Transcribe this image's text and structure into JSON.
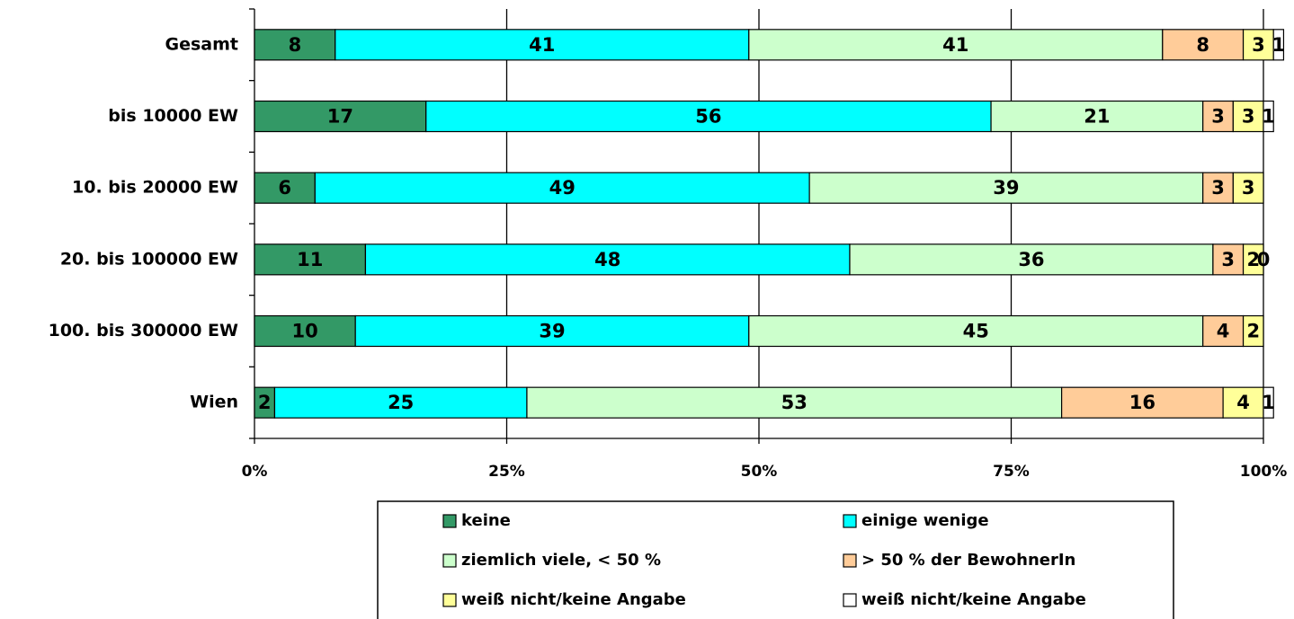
{
  "chart_data": {
    "type": "stacked_barh",
    "categories": [
      "Gesamt",
      "bis 10000 EW",
      "10. bis 20000 EW",
      "20. bis 100000 EW",
      "100. bis 300000 EW",
      "Wien"
    ],
    "series": [
      {
        "name": "keine",
        "color": "#339966",
        "values": [
          8,
          17,
          6,
          11,
          10,
          2
        ]
      },
      {
        "name": "einige wenige",
        "color": "#00ffff",
        "values": [
          41,
          56,
          49,
          48,
          39,
          25
        ]
      },
      {
        "name": "ziemlich viele, < 50 %",
        "color": "#ccffcc",
        "values": [
          41,
          21,
          39,
          36,
          45,
          53
        ]
      },
      {
        "name": "> 50 % der BewohnerIn",
        "color": "#ffcc99",
        "values": [
          8,
          3,
          3,
          3,
          4,
          16
        ]
      },
      {
        "name": "weiß nicht/keine Angabe",
        "color": "#ffff99",
        "values": [
          3,
          3,
          3,
          2,
          2,
          4
        ]
      },
      {
        "name": "weiß nicht/keine Angabe",
        "color": "#ffffff",
        "values": [
          1,
          1,
          null,
          0,
          null,
          1
        ]
      }
    ],
    "xlim": [
      0,
      100
    ],
    "xticks": [
      {
        "value": 0,
        "label": "0%"
      },
      {
        "value": 25,
        "label": "25%"
      },
      {
        "value": 50,
        "label": "50%"
      },
      {
        "value": 75,
        "label": "75%"
      },
      {
        "value": 100,
        "label": "100%"
      }
    ],
    "grid": true
  }
}
